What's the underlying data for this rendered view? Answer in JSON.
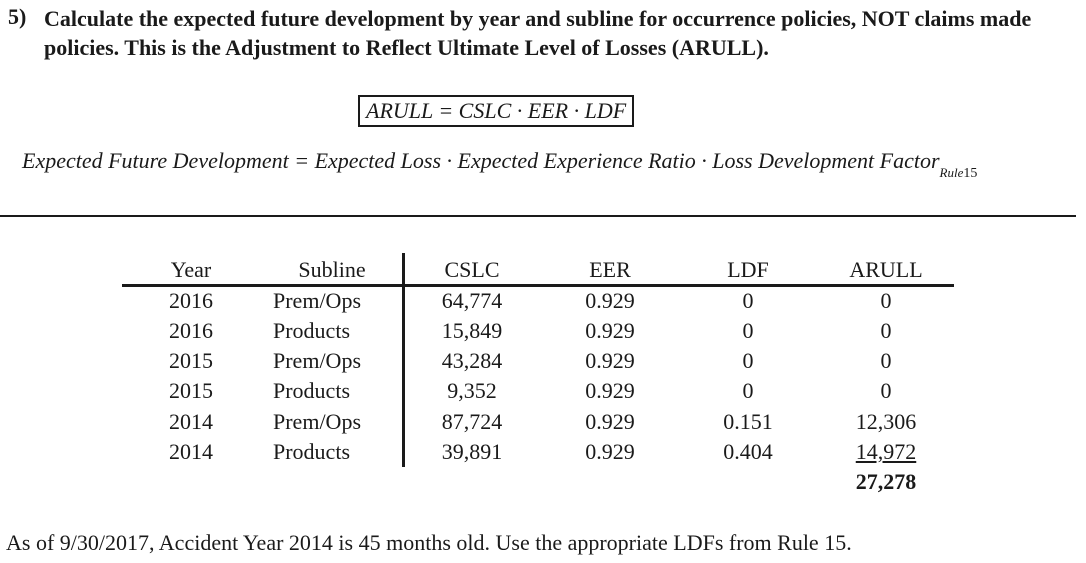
{
  "question": {
    "number": "5)",
    "text": "Calculate the expected future development by year and subline for occurrence policies, NOT claims made policies. This is the Adjustment to Reflect Ultimate Level of Losses (ARULL)."
  },
  "formula_short": "ARULL = CSLC · EER · LDF",
  "formula_long": {
    "text": "Expected Future Development = Expected Loss · Expected Experience Ratio · Loss Development Factor",
    "sub_italic": "Rule",
    "sub_number": "15"
  },
  "table": {
    "headers": [
      "Year",
      "Subline",
      "CSLC",
      "EER",
      "LDF",
      "ARULL"
    ],
    "rows": [
      [
        "2016",
        "Prem/Ops",
        "64,774",
        "0.929",
        "0",
        "0"
      ],
      [
        "2016",
        "Products",
        "15,849",
        "0.929",
        "0",
        "0"
      ],
      [
        "2015",
        "Prem/Ops",
        "43,284",
        "0.929",
        "0",
        "0"
      ],
      [
        "2015",
        "Products",
        "9,352",
        "0.929",
        "0",
        "0"
      ],
      [
        "2014",
        "Prem/Ops",
        "87,724",
        "0.929",
        "0.151",
        "12,306"
      ],
      [
        "2014",
        "Products",
        "39,891",
        "0.929",
        "0.404",
        "14,972"
      ]
    ],
    "total": "27,278"
  },
  "footer": "As of 9/30/2017, Accident Year 2014 is 45 months old. Use the appropriate LDFs from Rule 15."
}
